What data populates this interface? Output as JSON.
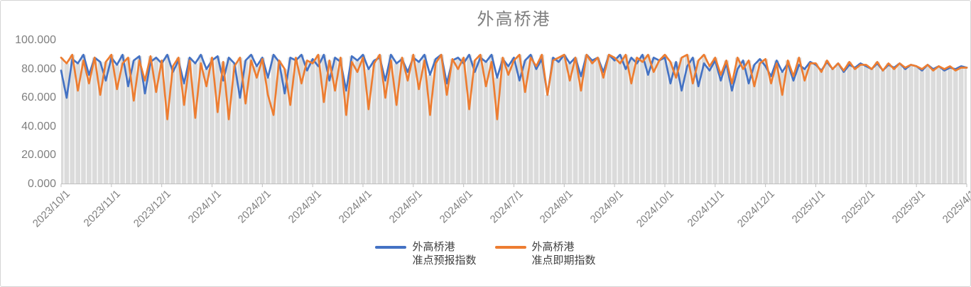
{
  "chart_data": {
    "type": "line",
    "title": "外高桥港",
    "ylim": [
      0,
      100
    ],
    "y_tick_labels": [
      "0.000",
      "20.000",
      "40.000",
      "60.000",
      "80.000",
      "100.000"
    ],
    "x_tick_labels": [
      "2023/10/1",
      "2023/11/1",
      "2023/12/1",
      "2024/1/1",
      "2024/2/1",
      "2024/3/1",
      "2024/4/1",
      "2024/5/1",
      "2024/6/1",
      "2024/7/1",
      "2024/8/1",
      "2024/9/1",
      "2024/10/1",
      "2024/11/1",
      "2024/12/1",
      "2025/1/1",
      "2025/2/1",
      "2025/3/1",
      "2025/4/1"
    ],
    "points_per_month": 9,
    "grid": "none",
    "legend_position": "bottom-center",
    "background_bar_color": "#DBDBDB",
    "axis_color": "#BFBFBF",
    "text_color": "#7F7F7F",
    "legend_text_color": "#404040",
    "series": [
      {
        "name": "外高桥港准点预报指数",
        "legend_line1": "外高桥港",
        "legend_line2": "准点预报指数",
        "color": "#4472C4",
        "values": [
          79,
          60,
          87,
          84,
          90,
          76,
          88,
          85,
          72,
          88,
          83,
          90,
          68,
          86,
          89,
          63,
          85,
          88,
          84,
          90,
          78,
          86,
          70,
          88,
          84,
          90,
          80,
          86,
          89,
          72,
          88,
          84,
          60,
          86,
          90,
          82,
          88,
          74,
          90,
          85,
          63,
          88,
          86,
          90,
          79,
          87,
          82,
          90,
          72,
          88,
          85,
          65,
          89,
          86,
          90,
          80,
          86,
          88,
          72,
          90,
          84,
          87,
          78,
          88,
          85,
          90,
          76,
          87,
          90,
          70,
          86,
          88,
          84,
          90,
          78,
          88,
          85,
          90,
          74,
          87,
          82,
          88,
          72,
          86,
          90,
          80,
          87,
          62,
          88,
          85,
          90,
          84,
          88,
          75,
          90,
          86,
          88,
          78,
          90,
          86,
          90,
          80,
          88,
          84,
          90,
          76,
          88,
          86,
          88,
          70,
          85,
          65,
          82,
          88,
          68,
          84,
          79,
          86,
          72,
          84,
          65,
          80,
          86,
          70,
          83,
          87,
          82,
          75,
          86,
          78,
          84,
          72,
          83,
          80,
          85,
          83,
          79,
          85,
          80,
          84,
          78,
          83,
          81,
          84,
          82,
          80,
          84,
          79,
          83,
          81,
          84,
          80,
          83,
          82,
          79,
          83,
          80,
          82,
          79,
          81,
          80,
          82,
          81
        ]
      },
      {
        "name": "外高桥港准点即期指数",
        "legend_line1": "外高桥港",
        "legend_line2": "准点即期指数",
        "color": "#ED7D31",
        "values": [
          88,
          84,
          90,
          65,
          86,
          70,
          88,
          62,
          85,
          90,
          66,
          84,
          88,
          58,
          86,
          72,
          89,
          64,
          86,
          45,
          82,
          88,
          55,
          86,
          46,
          84,
          68,
          88,
          50,
          85,
          45,
          82,
          88,
          56,
          86,
          74,
          87,
          62,
          48,
          86,
          80,
          55,
          88,
          70,
          86,
          84,
          90,
          57,
          86,
          65,
          88,
          48,
          85,
          78,
          88,
          52,
          84,
          90,
          60,
          86,
          55,
          88,
          72,
          90,
          66,
          86,
          48,
          84,
          90,
          62,
          87,
          80,
          88,
          52,
          86,
          90,
          68,
          85,
          45,
          88,
          76,
          86,
          90,
          64,
          88,
          82,
          90,
          62,
          86,
          88,
          90,
          72,
          88,
          65,
          90,
          84,
          88,
          74,
          90,
          88,
          84,
          90,
          70,
          88,
          85,
          90,
          78,
          86,
          90,
          85,
          74,
          88,
          90,
          70,
          86,
          90,
          82,
          88,
          76,
          86,
          70,
          88,
          80,
          86,
          68,
          84,
          87,
          70,
          84,
          62,
          86,
          75,
          88,
          72,
          84,
          84,
          78,
          86,
          80,
          84,
          79,
          85,
          80,
          83,
          83,
          80,
          85,
          79,
          84,
          80,
          84,
          81,
          83,
          82,
          80,
          83,
          79,
          82,
          80,
          82,
          79,
          81,
          81
        ]
      }
    ]
  }
}
